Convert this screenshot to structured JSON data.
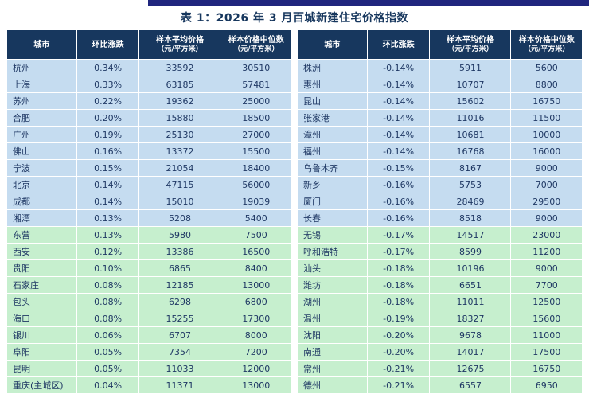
{
  "title": "表 1：2026 年 3 月百城新建住宅价格指数",
  "columns": [
    {
      "label": "城市"
    },
    {
      "label": "环比涨跌"
    },
    {
      "label": "样本平均价格",
      "sub": "（元/平方米）"
    },
    {
      "label": "样本价格中位数",
      "sub": "（元/平方米）"
    }
  ],
  "colors": {
    "header_bg": "#17375E",
    "blue_row_bg": "#C5DCF0",
    "green_row_bg": "#C6EFCE",
    "text": "#1F3864",
    "top_bar": "#20267e"
  },
  "left_rows": [
    {
      "city": "杭州",
      "change": "0.34%",
      "avg": "33592",
      "median": "30510",
      "group": "blue"
    },
    {
      "city": "上海",
      "change": "0.33%",
      "avg": "63185",
      "median": "57481",
      "group": "blue"
    },
    {
      "city": "苏州",
      "change": "0.22%",
      "avg": "19362",
      "median": "25000",
      "group": "blue"
    },
    {
      "city": "合肥",
      "change": "0.20%",
      "avg": "15880",
      "median": "18500",
      "group": "blue"
    },
    {
      "city": "广州",
      "change": "0.19%",
      "avg": "25130",
      "median": "27000",
      "group": "blue"
    },
    {
      "city": "佛山",
      "change": "0.16%",
      "avg": "13372",
      "median": "15500",
      "group": "blue"
    },
    {
      "city": "宁波",
      "change": "0.15%",
      "avg": "21054",
      "median": "18400",
      "group": "blue"
    },
    {
      "city": "北京",
      "change": "0.14%",
      "avg": "47115",
      "median": "56000",
      "group": "blue"
    },
    {
      "city": "成都",
      "change": "0.14%",
      "avg": "15010",
      "median": "19039",
      "group": "blue"
    },
    {
      "city": "湘潭",
      "change": "0.13%",
      "avg": "5208",
      "median": "5400",
      "group": "blue"
    },
    {
      "city": "东营",
      "change": "0.13%",
      "avg": "5980",
      "median": "7500",
      "group": "green"
    },
    {
      "city": "西安",
      "change": "0.12%",
      "avg": "13386",
      "median": "16500",
      "group": "green"
    },
    {
      "city": "贵阳",
      "change": "0.10%",
      "avg": "6865",
      "median": "8400",
      "group": "green"
    },
    {
      "city": "石家庄",
      "change": "0.08%",
      "avg": "12185",
      "median": "13000",
      "group": "green"
    },
    {
      "city": "包头",
      "change": "0.08%",
      "avg": "6298",
      "median": "6800",
      "group": "green"
    },
    {
      "city": "海口",
      "change": "0.08%",
      "avg": "15255",
      "median": "17300",
      "group": "green"
    },
    {
      "city": "银川",
      "change": "0.06%",
      "avg": "6707",
      "median": "8000",
      "group": "green"
    },
    {
      "city": "阜阳",
      "change": "0.05%",
      "avg": "7354",
      "median": "7200",
      "group": "green"
    },
    {
      "city": "昆明",
      "change": "0.05%",
      "avg": "11033",
      "median": "12000",
      "group": "green"
    },
    {
      "city": "重庆(主城区)",
      "change": "0.04%",
      "avg": "11371",
      "median": "13000",
      "group": "green"
    }
  ],
  "right_rows": [
    {
      "city": "株洲",
      "change": "-0.14%",
      "avg": "5911",
      "median": "5600",
      "group": "blue"
    },
    {
      "city": "惠州",
      "change": "-0.14%",
      "avg": "10707",
      "median": "8800",
      "group": "blue"
    },
    {
      "city": "昆山",
      "change": "-0.14%",
      "avg": "15602",
      "median": "16750",
      "group": "blue"
    },
    {
      "city": "张家港",
      "change": "-0.14%",
      "avg": "11016",
      "median": "11500",
      "group": "blue"
    },
    {
      "city": "漳州",
      "change": "-0.14%",
      "avg": "10681",
      "median": "10000",
      "group": "blue"
    },
    {
      "city": "福州",
      "change": "-0.14%",
      "avg": "16768",
      "median": "16000",
      "group": "blue"
    },
    {
      "city": "乌鲁木齐",
      "change": "-0.15%",
      "avg": "8167",
      "median": "9000",
      "group": "blue"
    },
    {
      "city": "新乡",
      "change": "-0.16%",
      "avg": "5753",
      "median": "7000",
      "group": "blue"
    },
    {
      "city": "厦门",
      "change": "-0.16%",
      "avg": "28469",
      "median": "29500",
      "group": "blue"
    },
    {
      "city": "长春",
      "change": "-0.16%",
      "avg": "8518",
      "median": "9000",
      "group": "blue"
    },
    {
      "city": "无锡",
      "change": "-0.17%",
      "avg": "14517",
      "median": "23000",
      "group": "green"
    },
    {
      "city": "呼和浩特",
      "change": "-0.17%",
      "avg": "8599",
      "median": "11200",
      "group": "green"
    },
    {
      "city": "汕头",
      "change": "-0.18%",
      "avg": "10196",
      "median": "9000",
      "group": "green"
    },
    {
      "city": "潍坊",
      "change": "-0.18%",
      "avg": "6651",
      "median": "7700",
      "group": "green"
    },
    {
      "city": "湖州",
      "change": "-0.18%",
      "avg": "11011",
      "median": "12500",
      "group": "green"
    },
    {
      "city": "温州",
      "change": "-0.19%",
      "avg": "18327",
      "median": "15600",
      "group": "green"
    },
    {
      "city": "沈阳",
      "change": "-0.20%",
      "avg": "9678",
      "median": "11000",
      "group": "green"
    },
    {
      "city": "南通",
      "change": "-0.20%",
      "avg": "14017",
      "median": "17500",
      "group": "green"
    },
    {
      "city": "常州",
      "change": "-0.21%",
      "avg": "12675",
      "median": "16750",
      "group": "green"
    },
    {
      "city": "德州",
      "change": "-0.21%",
      "avg": "6557",
      "median": "6950",
      "group": "green"
    }
  ]
}
